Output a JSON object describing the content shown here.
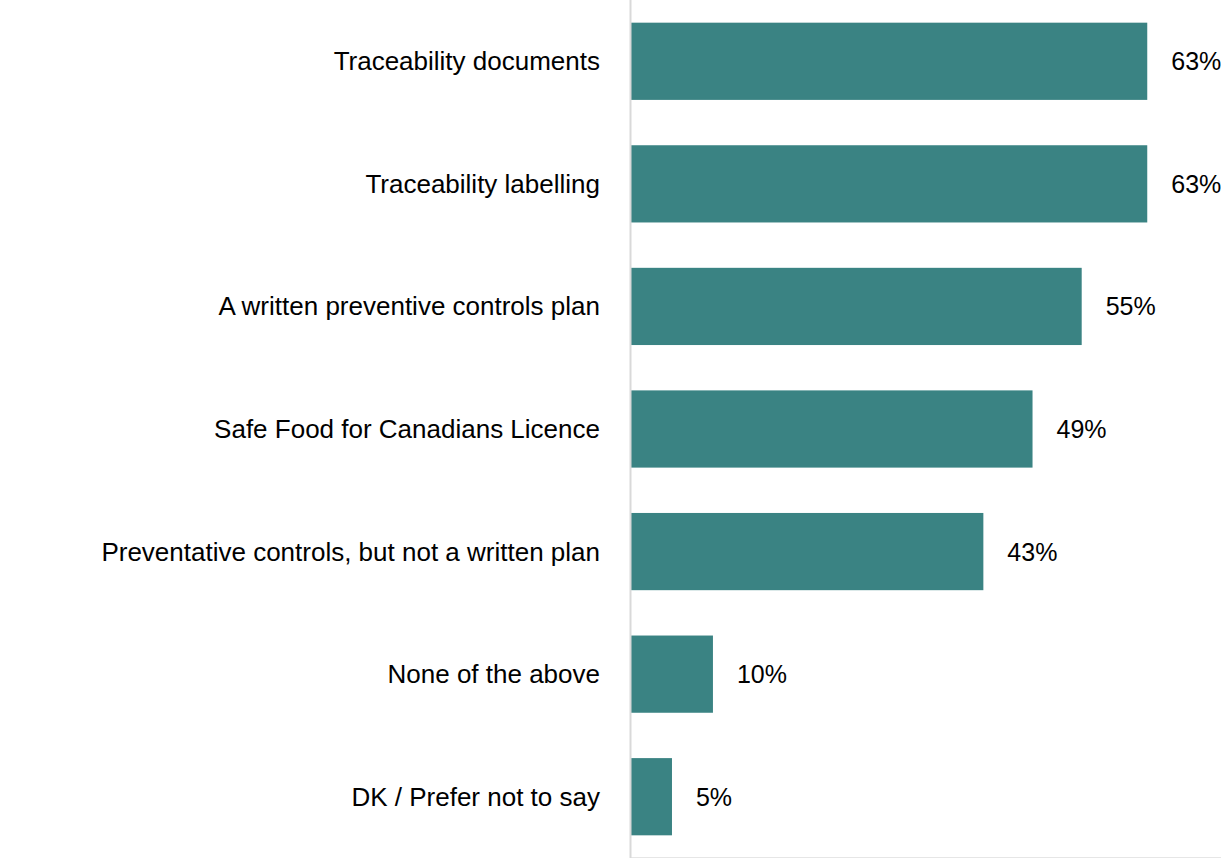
{
  "chart_data": {
    "type": "bar",
    "orientation": "horizontal",
    "categories": [
      "Traceability documents",
      "Traceability labelling",
      "A written preventive controls plan",
      "Safe Food for Canadians Licence",
      "Preventative controls, but not a written plan",
      "None of the above",
      "DK / Prefer not to say"
    ],
    "values": [
      63,
      63,
      55,
      49,
      43,
      10,
      5
    ],
    "value_labels": [
      "63%",
      "63%",
      "55%",
      "49%",
      "43%",
      "10%",
      "5%"
    ],
    "color": "#3a8383",
    "xlim": [
      0,
      72
    ],
    "grid": false,
    "data_labels": true,
    "tick_labels": "y"
  }
}
